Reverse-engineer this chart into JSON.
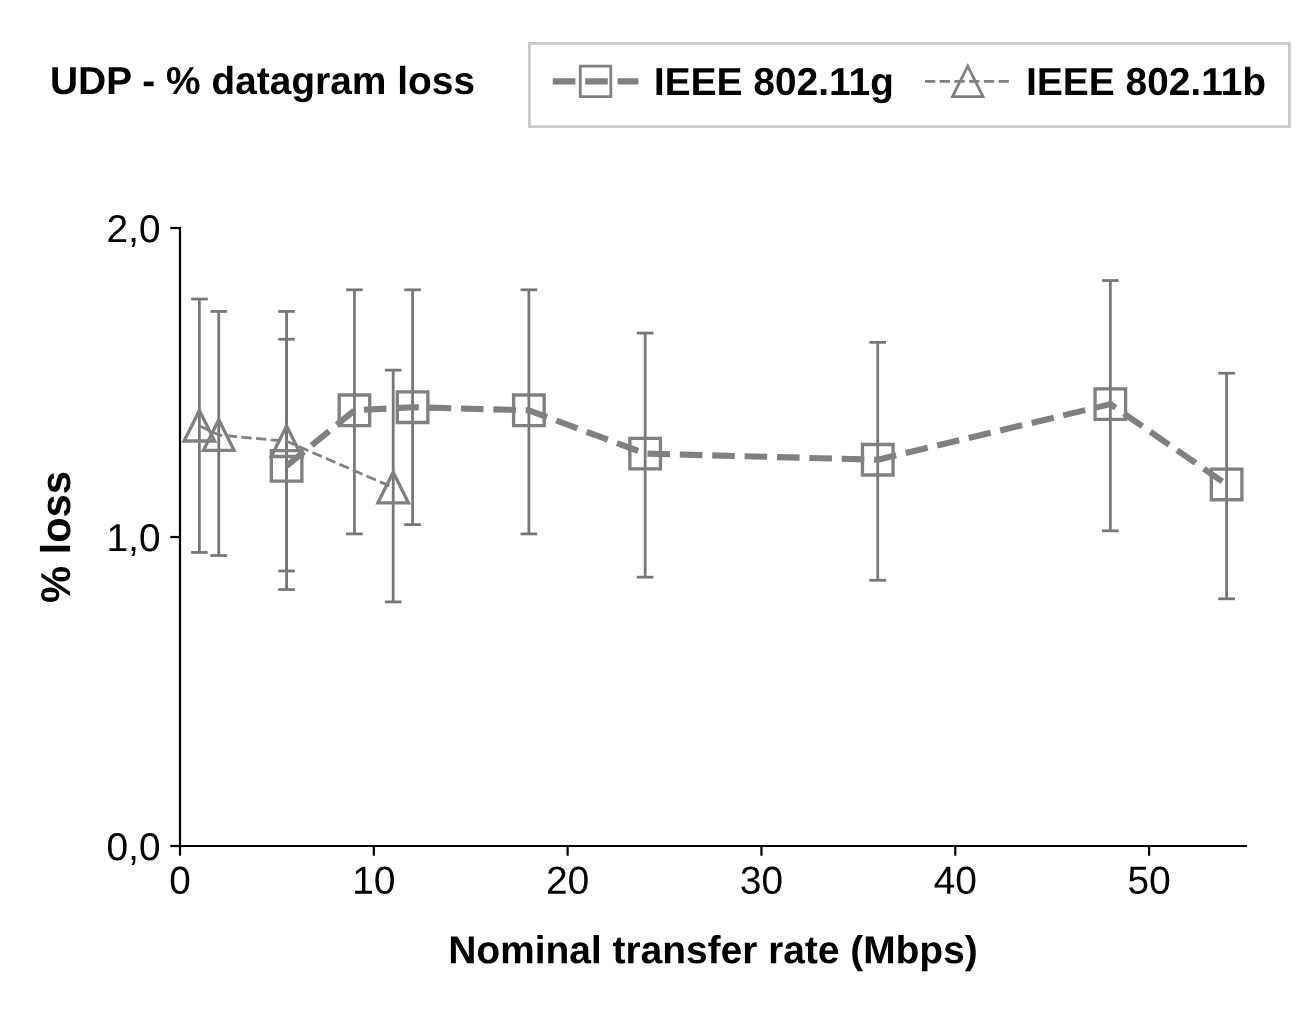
{
  "chart_data": {
    "type": "line",
    "title": "UDP - % datagram loss",
    "xlabel": "Nominal transfer rate (Mbps)",
    "ylabel": "% loss",
    "series": [
      {
        "name": "IEEE 802.11g",
        "color": "#808080",
        "marker": "square",
        "line_style": "dashed",
        "x": [
          5.5,
          9,
          12,
          18,
          24,
          36,
          48,
          54
        ],
        "values": [
          1.23,
          1.41,
          1.42,
          1.41,
          1.27,
          1.25,
          1.43,
          1.17
        ],
        "errors": [
          [
            0.83,
            1.64
          ],
          [
            1.01,
            1.8
          ],
          [
            1.04,
            1.8
          ],
          [
            1.01,
            1.8
          ],
          [
            0.87,
            1.66
          ],
          [
            0.86,
            1.63
          ],
          [
            1.02,
            1.83
          ],
          [
            0.8,
            1.53
          ]
        ]
      },
      {
        "name": "IEEE 802.11b",
        "color": "#808080",
        "marker": "triangle",
        "line_style": "dashed",
        "x": [
          1,
          2,
          5.5,
          11
        ],
        "values": [
          1.36,
          1.33,
          1.31,
          1.16
        ],
        "errors": [
          [
            0.95,
            1.77
          ],
          [
            0.94,
            1.73
          ],
          [
            0.89,
            1.73
          ],
          [
            0.79,
            1.54
          ]
        ]
      }
    ],
    "xlim": [
      0,
      55
    ],
    "xticks": [
      0,
      10,
      20,
      30,
      40,
      50
    ],
    "ylim": [
      0,
      2
    ],
    "yticks": [
      {
        "value": 0,
        "label": "0,0"
      },
      {
        "value": 1,
        "label": "1,0"
      },
      {
        "value": 2,
        "label": "2,0"
      }
    ],
    "grid": false,
    "legend": "top"
  }
}
